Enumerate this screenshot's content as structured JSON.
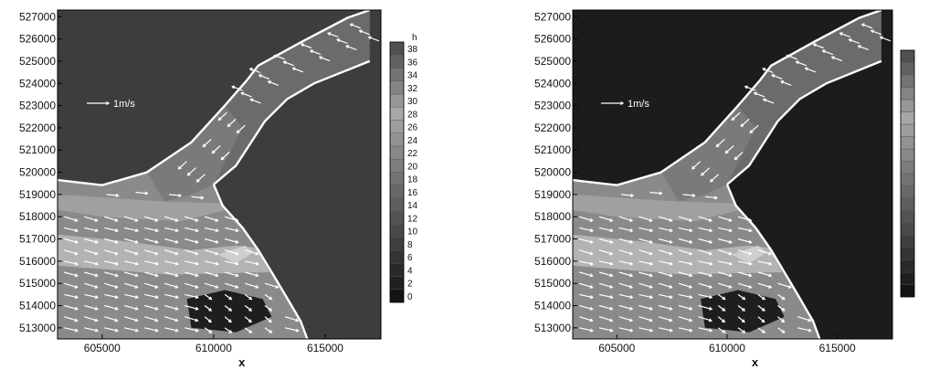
{
  "colors": {
    "land_panel_1": "#3d3d3d",
    "land_panel_2": "#1c1c1c",
    "bank_line": "#ffffff",
    "vector": "#ffffff",
    "background": "#ffffff"
  },
  "chart_data": [
    {
      "type": "contour-vector",
      "xlabel": "x",
      "ylabel": "",
      "xlim": [
        603000,
        617500
      ],
      "ylim": [
        512500,
        527300
      ],
      "x_ticks": [
        605000,
        610000,
        615000
      ],
      "x_tick_labels": [
        "605000",
        "610000",
        "615000"
      ],
      "y_ticks": [
        513000,
        514000,
        515000,
        516000,
        517000,
        518000,
        519000,
        520000,
        521000,
        522000,
        523000,
        524000,
        525000,
        526000,
        527000
      ],
      "y_tick_labels": [
        "513000",
        "514000",
        "515000",
        "516000",
        "517000",
        "518000",
        "519000",
        "520000",
        "521000",
        "522000",
        "523000",
        "524000",
        "525000",
        "526000",
        "527000"
      ],
      "legend_title": "h",
      "legend_levels": [
        0,
        2,
        4,
        6,
        8,
        10,
        12,
        14,
        16,
        18,
        20,
        22,
        24,
        26,
        28,
        30,
        32,
        34,
        36,
        38
      ],
      "legend_labels": [
        "0",
        "2",
        "4",
        "6",
        "8",
        "10",
        "12",
        "14",
        "16",
        "18",
        "20",
        "22",
        "24",
        "26",
        "28",
        "30",
        "32",
        "34",
        "36",
        "38"
      ],
      "scale_vector_label": "1m/s",
      "channel_banks": {
        "north_outer": [
          [
            603000,
            519650
          ],
          [
            605000,
            519420
          ],
          [
            607000,
            520000
          ],
          [
            609000,
            521350
          ],
          [
            610500,
            523000
          ],
          [
            611500,
            524150
          ],
          [
            612000,
            524800
          ],
          [
            614000,
            525900
          ],
          [
            616000,
            526950
          ],
          [
            617000,
            527300
          ]
        ],
        "south_inner": [
          [
            610000,
            519450
          ],
          [
            611000,
            520300
          ],
          [
            612300,
            522300
          ],
          [
            613300,
            523300
          ],
          [
            614500,
            524000
          ],
          [
            617000,
            525000
          ]
        ],
        "sw_main": [
          [
            610000,
            519450
          ],
          [
            610400,
            518500
          ],
          [
            611300,
            517500
          ],
          [
            612000,
            516500
          ],
          [
            612600,
            515500
          ],
          [
            613200,
            514500
          ],
          [
            613900,
            513300
          ],
          [
            614200,
            512500
          ]
        ]
      }
    },
    {
      "type": "contour-vector",
      "xlabel": "x",
      "ylabel": "",
      "xlim": [
        603000,
        617500
      ],
      "ylim": [
        512500,
        527300
      ],
      "x_ticks": [
        605000,
        610000,
        615000
      ],
      "x_tick_labels": [
        "605000",
        "610000",
        "615000"
      ],
      "y_ticks": [
        513000,
        514000,
        515000,
        516000,
        517000,
        518000,
        519000,
        520000,
        521000,
        522000,
        523000,
        524000,
        525000,
        526000,
        527000
      ],
      "y_tick_labels": [
        "513000",
        "514000",
        "515000",
        "516000",
        "517000",
        "518000",
        "519000",
        "520000",
        "521000",
        "522000",
        "523000",
        "524000",
        "525000",
        "526000",
        "527000"
      ],
      "legend_title": "",
      "legend_levels": [
        0,
        2,
        4,
        6,
        8,
        10,
        12,
        14,
        16,
        18,
        20,
        22,
        24,
        26,
        28,
        30,
        32,
        34,
        36,
        38
      ],
      "legend_labels": [
        "",
        "",
        "",
        "",
        "",
        "",
        "",
        "",
        "",
        "",
        "",
        "",
        "",
        "",
        "",
        "",
        "",
        "",
        "",
        ""
      ],
      "scale_vector_label": "1m/s",
      "channel_banks": {
        "north_outer": [
          [
            603000,
            519650
          ],
          [
            605000,
            519420
          ],
          [
            607000,
            520000
          ],
          [
            609000,
            521350
          ],
          [
            610500,
            523000
          ],
          [
            611500,
            524150
          ],
          [
            612000,
            524800
          ],
          [
            614000,
            525900
          ],
          [
            616000,
            526950
          ],
          [
            617000,
            527300
          ]
        ],
        "south_inner": [
          [
            610000,
            519450
          ],
          [
            611000,
            520300
          ],
          [
            612300,
            522300
          ],
          [
            613300,
            523300
          ],
          [
            614500,
            524000
          ],
          [
            617000,
            525000
          ]
        ],
        "sw_main": [
          [
            610000,
            519450
          ],
          [
            610400,
            518500
          ],
          [
            611300,
            517500
          ],
          [
            612000,
            516500
          ],
          [
            612600,
            515500
          ],
          [
            613200,
            514500
          ],
          [
            613900,
            513300
          ],
          [
            614200,
            512500
          ]
        ]
      }
    }
  ]
}
